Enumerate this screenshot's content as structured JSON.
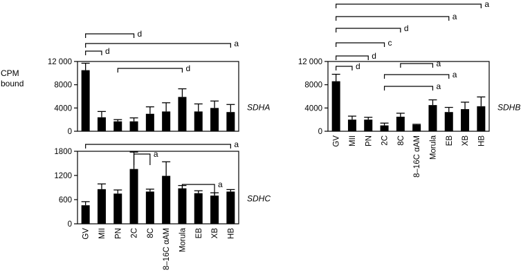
{
  "figure": {
    "ylabel_line1": "CPM",
    "ylabel_line2": "bound",
    "categories": [
      "GV",
      "MII",
      "PN",
      "2C",
      "8C",
      "8–16C αAM",
      "Morula",
      "EB",
      "XB",
      "HB"
    ]
  },
  "chart_data": [
    {
      "type": "bar",
      "panel": "SDHA",
      "side_label": "SDHA",
      "categories": [
        "GV",
        "MII",
        "PN",
        "2C",
        "8C",
        "8–16C αAM",
        "Morula",
        "EB",
        "XB",
        "HB"
      ],
      "values": [
        10500,
        2400,
        1700,
        1700,
        3000,
        3400,
        5900,
        3400,
        4000,
        3300
      ],
      "errors": [
        1200,
        1000,
        300,
        600,
        1200,
        1500,
        1400,
        1300,
        1200,
        1300
      ],
      "ylim": [
        0,
        12000
      ],
      "yticks": [
        0,
        4000,
        8000,
        12000
      ],
      "ytick_labels": [
        "0",
        "4000",
        "8000",
        "12 000"
      ],
      "show_category_labels": false,
      "brackets": [
        {
          "from": "GV",
          "to": "MII",
          "label": "d"
        },
        {
          "from": "PN",
          "to": "Morula",
          "label": "d"
        },
        {
          "from": "GV",
          "to": "HB",
          "label": "a"
        },
        {
          "from": "GV",
          "to": "2C",
          "label": "d"
        }
      ]
    },
    {
      "type": "bar",
      "panel": "SDHC",
      "side_label": "SDHC",
      "categories": [
        "GV",
        "MII",
        "PN",
        "2C",
        "8C",
        "8–16C αAM",
        "Morula",
        "EB",
        "XB",
        "HB"
      ],
      "values": [
        460,
        860,
        750,
        1360,
        800,
        1190,
        880,
        760,
        700,
        800
      ],
      "errors": [
        90,
        130,
        90,
        420,
        60,
        350,
        70,
        60,
        70,
        50
      ],
      "ylim": [
        0,
        1800
      ],
      "yticks": [
        0,
        600,
        1200,
        1800
      ],
      "ytick_labels": [
        "0",
        "600",
        "1200",
        "1800"
      ],
      "show_category_labels": true,
      "brackets": [
        {
          "from": "GV",
          "to": "HB",
          "label": "a"
        },
        {
          "from": "2C",
          "to": "8C",
          "label": "a"
        },
        {
          "from": "Morula",
          "to": "XB",
          "label": "a"
        }
      ]
    },
    {
      "type": "bar",
      "panel": "SDHB",
      "side_label": "SDHB",
      "categories": [
        "GV",
        "MII",
        "PN",
        "2C",
        "8C",
        "8–16C αAM",
        "Morula",
        "EB",
        "XB",
        "HB"
      ],
      "values": [
        8600,
        2000,
        2000,
        1000,
        2500,
        1100,
        4500,
        3300,
        3800,
        4300
      ],
      "errors": [
        1200,
        600,
        400,
        400,
        600,
        100,
        900,
        800,
        1200,
        1600
      ],
      "ylim": [
        0,
        12000
      ],
      "yticks": [
        0,
        4000,
        8000,
        12000
      ],
      "ytick_labels": [
        "0",
        "4000",
        "8000",
        "12 000"
      ],
      "show_category_labels": true,
      "brackets": [
        {
          "from": "GV",
          "to": "MII",
          "label": "d"
        },
        {
          "from": "GV",
          "to": "PN",
          "label": "d"
        },
        {
          "from": "GV",
          "to": "2C",
          "label": "c"
        },
        {
          "from": "GV",
          "to": "8C",
          "label": "d"
        },
        {
          "from": "GV",
          "to": "EB",
          "label": "a"
        },
        {
          "from": "GV",
          "to": "HB",
          "label": "a"
        },
        {
          "from": "2C",
          "to": "Morula",
          "label": "a"
        },
        {
          "from": "2C",
          "to": "EB",
          "label": "a"
        },
        {
          "from": "8C",
          "to": "Morula",
          "label": "a"
        }
      ]
    }
  ]
}
